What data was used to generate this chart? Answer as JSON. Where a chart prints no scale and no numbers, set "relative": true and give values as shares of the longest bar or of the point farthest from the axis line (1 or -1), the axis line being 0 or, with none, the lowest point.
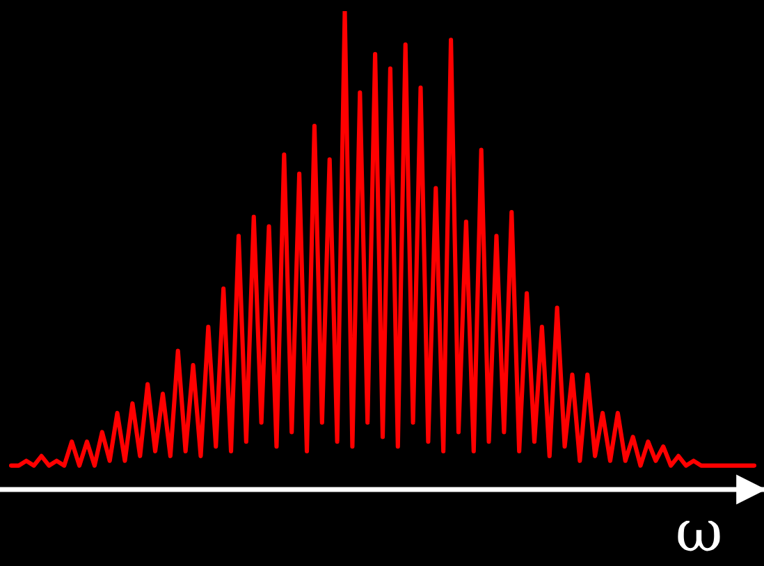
{
  "chart_data": {
    "type": "line",
    "relative": true,
    "xlabel": "ω",
    "grid": false,
    "marker": "none",
    "line_style": "solid",
    "categories": [
      null,
      null,
      null,
      null,
      null,
      null,
      null,
      null,
      null,
      null,
      null,
      null,
      null,
      null,
      null,
      null,
      null,
      null,
      null,
      null,
      null,
      null,
      null,
      null,
      null,
      null,
      null,
      null,
      null,
      null,
      null,
      null,
      null,
      null,
      null,
      null,
      null,
      null,
      null,
      null,
      null,
      null,
      null,
      null,
      null,
      null,
      null,
      null,
      null,
      null,
      null,
      null,
      null,
      null,
      null,
      null,
      null,
      null,
      null,
      null,
      null,
      null,
      null,
      null,
      null,
      null,
      null,
      null,
      null,
      null,
      null,
      null,
      null,
      null,
      null,
      null,
      null,
      null,
      null,
      null,
      null,
      null,
      null,
      null,
      null,
      null,
      null,
      null,
      null,
      null,
      null,
      null,
      null,
      null,
      null,
      null,
      null,
      null,
      null
    ],
    "series": [
      {
        "color": "#ff0000",
        "values": [
          0.05,
          0.05,
          0.06,
          0.05,
          0.07,
          0.05,
          0.06,
          0.05,
          0.1,
          0.05,
          0.1,
          0.05,
          0.12,
          0.06,
          0.16,
          0.06,
          0.18,
          0.07,
          0.22,
          0.08,
          0.2,
          0.07,
          0.29,
          0.08,
          0.26,
          0.07,
          0.34,
          0.09,
          0.42,
          0.08,
          0.53,
          0.1,
          0.57,
          0.14,
          0.55,
          0.09,
          0.7,
          0.12,
          0.66,
          0.08,
          0.76,
          0.14,
          0.69,
          0.1,
          1.0,
          0.09,
          0.83,
          0.14,
          0.91,
          0.11,
          0.88,
          0.09,
          0.93,
          0.14,
          0.84,
          0.1,
          0.63,
          0.08,
          0.94,
          0.12,
          0.56,
          0.08,
          0.71,
          0.1,
          0.53,
          0.12,
          0.58,
          0.08,
          0.41,
          0.1,
          0.34,
          0.07,
          0.38,
          0.09,
          0.24,
          0.06,
          0.24,
          0.07,
          0.16,
          0.06,
          0.16,
          0.06,
          0.11,
          0.05,
          0.1,
          0.06,
          0.09,
          0.05,
          0.07,
          0.05,
          0.06,
          0.05,
          0.05,
          0.05,
          0.05,
          0.05,
          0.05,
          0.05,
          0.05
        ]
      }
    ]
  }
}
